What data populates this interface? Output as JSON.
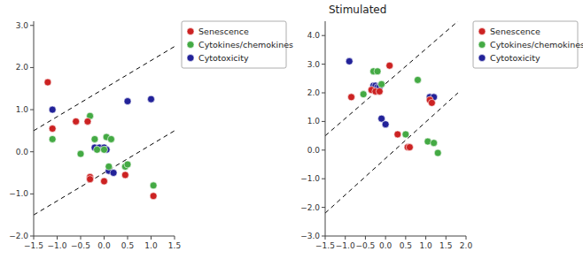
{
  "chart_data": [
    {
      "type": "scatter",
      "marker": "circle",
      "legend": "upper right",
      "grid": false,
      "xlim": [
        -1.5,
        1.5
      ],
      "ylim": [
        -2.0,
        3.1
      ],
      "xticks": [
        {
          "value": -1.5,
          "label": "−1.5"
        },
        {
          "value": -1.0,
          "label": "−1.0"
        },
        {
          "value": -0.5,
          "label": "−0.5"
        },
        {
          "value": 0.0,
          "label": "0.0"
        },
        0.5,
        {
          "value": 1.0,
          "label": "1.0"
        },
        1.5
      ],
      "yticks": [
        {
          "value": -2.0,
          "label": "−2.0"
        },
        {
          "value": -1.0,
          "label": "−1.0"
        },
        {
          "value": 0.0,
          "label": "0.0"
        },
        {
          "value": 1.0,
          "label": "1.0"
        },
        {
          "value": 2.0,
          "label": "2.0"
        },
        {
          "value": 3.0,
          "label": "3.0"
        }
      ],
      "series": [
        {
          "name": "Senescence",
          "color": "#cc2222",
          "x": [
            -1.2,
            -1.1,
            -0.6,
            -0.35,
            -0.3,
            -0.3,
            0.0,
            0.45,
            1.05
          ],
          "values": [
            1.65,
            0.55,
            0.72,
            0.72,
            -0.6,
            -0.65,
            -0.7,
            -0.55,
            -1.05
          ]
        },
        {
          "name": "Cytokines/chemokines",
          "color": "#44aa44",
          "x": [
            -1.1,
            -0.5,
            -0.3,
            -0.2,
            -0.15,
            0.0,
            0.05,
            0.1,
            0.15,
            0.45,
            0.5,
            1.05
          ],
          "values": [
            0.3,
            -0.05,
            0.85,
            0.3,
            0.05,
            0.05,
            0.35,
            -0.35,
            0.3,
            -0.35,
            -0.3,
            -0.8
          ]
        },
        {
          "name": "Cytotoxicity",
          "color": "#222299",
          "x": [
            -1.1,
            -0.2,
            -0.1,
            0.0,
            0.05,
            0.1,
            0.2,
            0.5,
            1.0
          ],
          "values": [
            1.0,
            0.1,
            0.1,
            0.1,
            0.05,
            -0.45,
            -0.5,
            1.2,
            1.25
          ]
        }
      ],
      "lines": [
        {
          "color": "#000000",
          "line_style": "dashed",
          "x": [
            -1.5,
            1.5
          ],
          "y": [
            -1.5,
            0.5
          ]
        },
        {
          "color": "#000000",
          "line_style": "dashed",
          "x": [
            -1.5,
            1.5
          ],
          "y": [
            0.5,
            2.5
          ]
        }
      ]
    },
    {
      "type": "scatter",
      "title": "Stimulated",
      "marker": "circle",
      "legend": "upper right",
      "grid": false,
      "xlim": [
        -1.5,
        2.0
      ],
      "ylim": [
        -3.0,
        4.5
      ],
      "xticks": [
        {
          "value": -1.5,
          "label": "−1.5"
        },
        {
          "value": -1.0,
          "label": "−1.0"
        },
        {
          "value": -0.5,
          "label": "−0.5"
        },
        {
          "value": 0.0,
          "label": "0.0"
        },
        0.5,
        {
          "value": 1.0,
          "label": "1.0"
        },
        1.5,
        {
          "value": 2.0,
          "label": "2.0"
        }
      ],
      "yticks": [
        {
          "value": -3.0,
          "label": "−3.0"
        },
        {
          "value": -2.0,
          "label": "−2.0"
        },
        {
          "value": -1.0,
          "label": "−1.0"
        },
        {
          "value": 0.0,
          "label": "0.0"
        },
        {
          "value": 1.0,
          "label": "1.0"
        },
        {
          "value": 2.0,
          "label": "2.0"
        },
        {
          "value": 3.0,
          "label": "3.0"
        },
        {
          "value": 4.0,
          "label": "4.0"
        }
      ],
      "series": [
        {
          "name": "Senescence",
          "color": "#cc2222",
          "x": [
            -0.85,
            -0.35,
            -0.25,
            -0.15,
            0.1,
            0.3,
            0.55,
            0.6,
            1.1,
            1.15
          ],
          "values": [
            1.85,
            2.1,
            2.05,
            2.05,
            2.95,
            0.55,
            0.1,
            0.1,
            1.75,
            1.65
          ]
        },
        {
          "name": "Cytokines/chemokines",
          "color": "#44aa44",
          "x": [
            -0.55,
            -0.3,
            -0.2,
            -0.1,
            0.5,
            0.8,
            1.05,
            1.2,
            1.3
          ],
          "values": [
            1.95,
            2.75,
            2.75,
            2.3,
            0.55,
            2.45,
            0.3,
            0.25,
            -0.1
          ]
        },
        {
          "name": "Cytotoxicity",
          "color": "#222299",
          "x": [
            -0.9,
            -0.3,
            -0.25,
            -0.2,
            -0.15,
            -0.1,
            0.0,
            1.1,
            1.2
          ],
          "values": [
            3.1,
            2.25,
            2.25,
            2.2,
            2.2,
            1.1,
            0.9,
            1.85,
            1.85
          ]
        }
      ],
      "lines": [
        {
          "color": "#000000",
          "line_style": "dashed",
          "x": [
            -1.5,
            1.8
          ],
          "y": [
            -2.2,
            2.0
          ]
        },
        {
          "color": "#000000",
          "line_style": "dashed",
          "x": [
            -1.5,
            1.8
          ],
          "y": [
            0.5,
            4.5
          ]
        }
      ]
    }
  ]
}
